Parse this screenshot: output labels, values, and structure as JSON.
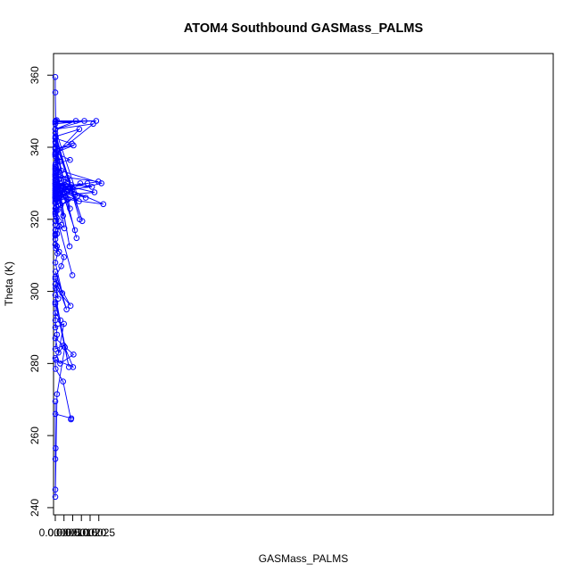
{
  "chart_data": {
    "type": "scatter",
    "title": "ATOM4 Southbound GASMass_PALMS",
    "xlabel": "GASMass_PALMS",
    "ylabel": "Theta (K)",
    "xlim": [
      -0.0001,
      0.0286
    ],
    "ylim": [
      238,
      366
    ],
    "x_ticks": [
      0.0,
      0.0005,
      0.001,
      0.0015,
      0.002,
      0.0025
    ],
    "x_tick_labels": [
      "0.0000",
      "0.0005",
      "0.0010",
      "0.0015",
      "0.0020",
      "0.0025"
    ],
    "y_ticks": [
      240,
      260,
      280,
      300,
      320,
      340,
      360
    ],
    "y_tick_labels": [
      "240",
      "260",
      "280",
      "300",
      "320",
      "340",
      "360"
    ],
    "grid": false,
    "legend": "none",
    "series_color": "#0000ff",
    "marker": "open-circle",
    "connected": true,
    "series": [
      {
        "x": [
          0.0,
          0.0,
          3e-05,
          8e-05,
          0.0,
          2e-05,
          0.00012,
          5e-05,
          0.0,
          1e-05,
          0.00015,
          0.0001,
          0.0,
          2e-05,
          0.00024,
          0.0,
          3e-05,
          0.0005,
          0.00034,
          0.0,
          9e-05,
          0.0,
          0.0,
          0.0001,
          0.0,
          0.00048,
          0.0,
          2e-05,
          0.00045,
          0.0009,
          0.00092,
          1e-05,
          0.0,
          0.0,
          2e-05,
          0.0,
          0.0,
          0.0001,
          0.00055,
          0.00102,
          4e-05,
          0.00028,
          0.00105,
          0.0,
          0.00018,
          0.0005,
          0.0,
          3e-05,
          0.0003,
          0.0,
          0.00078,
          0.0,
          0.00017,
          0.0,
          2e-05,
          0.00088,
          0.0,
          0.00065,
          1e-05,
          0.0004,
          0.0,
          0.00013,
          0.0,
          9e-05,
          0.00022,
          0.0,
          0.0001,
          0.0,
          0.00035,
          0.0,
          8e-05,
          0.00098,
          0.0,
          6e-05,
          0.00012,
          0.0,
          0.00042,
          0.0,
          0.00015,
          0.0,
          0.0,
          0.00052,
          0.0,
          3e-05,
          0.00113,
          0.0,
          0.00082,
          0.0,
          0.00026,
          0.0,
          0.00122,
          0.0,
          0.00011,
          0.00085,
          0.0,
          0.00045,
          0.0,
          0.00155,
          0.0,
          0.0014,
          0.0,
          0.00032,
          0.0,
          0.00128,
          0.0,
          5e-05,
          0.00072,
          0.0,
          0.00038,
          0.0,
          0.00058,
          0.0,
          0.00276,
          0.0,
          0.00095,
          0.0,
          0.00024,
          0.00136,
          0.0,
          0.00175,
          0.0,
          0.00068,
          0.0,
          0.00018,
          0.0,
          0.00225,
          0.0,
          0.0,
          0.0007,
          0.0,
          0.00028,
          0.00211,
          0.0,
          0.0,
          0.00265,
          0.0,
          0.00092,
          0.0,
          0.00012,
          0.0,
          0.0,
          0.00248,
          0.0,
          1e-05,
          0.00185,
          0.0,
          0.00062,
          0.0,
          0.00143,
          1e-05,
          0.0,
          0.00048,
          0.0,
          0.0,
          0.00235,
          1e-05,
          0.0,
          0.00118,
          0.0,
          0.00167,
          1e-05,
          0.00218,
          0.0,
          0.00138,
          3e-05,
          0.0,
          0.00095,
          0.0,
          0.00105,
          0.0,
          0.00085,
          2e-05,
          0.0,
          0.00035,
          0.0,
          0.00072,
          0.0,
          4e-05,
          0.0,
          2e-05,
          0.0,
          0.00012,
          0.0,
          0.00022,
          0.0,
          2e-05,
          0.0
        ],
        "y": [
          359.5,
          355.2,
          347.2,
          347.5,
          342.5,
          341.0,
          336.5,
          338.2,
          333.5,
          331.0,
          328.5,
          326.0,
          324.5,
          321.0,
          318.0,
          315.5,
          312.0,
          309.5,
          307.0,
          304.0,
          300.5,
          296.5,
          292.0,
          288.0,
          284.0,
          285.0,
          281.5,
          278.5,
          275.0,
          264.5,
          264.8,
          266.0,
          269.5,
          253.5,
          256.5,
          245.0,
          243.0,
          271.5,
          284.5,
          279.0,
          281.0,
          280.0,
          282.5,
          287.0,
          283.0,
          291.0,
          290.0,
          294.0,
          292.0,
          297.0,
          279.0,
          299.0,
          298.0,
          302.0,
          301.0,
          296.0,
          303.5,
          295.0,
          305.5,
          299.5,
          308.0,
          310.5,
          313.0,
          312.5,
          311.0,
          314.5,
          316.0,
          317.0,
          318.5,
          319.5,
          320.5,
          304.5,
          322.0,
          323.5,
          325.0,
          326.5,
          327.0,
          328.0,
          329.0,
          330.5,
          331.5,
          317.5,
          332.5,
          333.0,
          317.0,
          334.0,
          312.5,
          335.0,
          336.0,
          337.5,
          314.8,
          338.0,
          339.0,
          323.0,
          340.0,
          321.0,
          341.5,
          319.5,
          343.0,
          320.0,
          344.0,
          324.0,
          345.0,
          326.5,
          323.0,
          322.5,
          325.5,
          327.0,
          328.0,
          329.0,
          329.5,
          330.0,
          324.2,
          326.0,
          328.0,
          325.0,
          327.5,
          325.0,
          330.0,
          326.0,
          328.5,
          327.5,
          329.5,
          331.0,
          330.0,
          327.5,
          326.5,
          332.0,
          331.5,
          333.0,
          330.0,
          329.0,
          328.0,
          334.0,
          330.0,
          327.0,
          329.5,
          326.0,
          328.0,
          331.0,
          332.0,
          330.5,
          328.5,
          329.0,
          330.0,
          327.5,
          326.0,
          324.5,
          330.0,
          327.0,
          331.0,
          329.0,
          326.0,
          347.0,
          347.3,
          347.3,
          345.0,
          347.3,
          346.5,
          347.3,
          345.0,
          346.5,
          338.0,
          345.0,
          343.0,
          342.5,
          341.0,
          339.5,
          340.5,
          338.5,
          336.5,
          335.5,
          334.5,
          333.5,
          332.5,
          330.5,
          329.5,
          328.5,
          327.5,
          326.5,
          325.5,
          322.5,
          321.5,
          319.5,
          318.5,
          317.0,
          316.0
        ]
      }
    ]
  }
}
